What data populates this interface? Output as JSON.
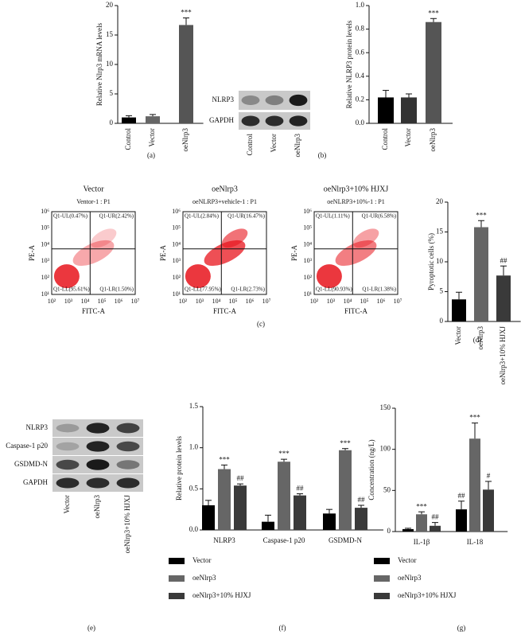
{
  "chart_data": [
    {
      "type": "bar",
      "panel": "(a)",
      "y_label": "Relative Nlrp3 mRNA levels",
      "categories": [
        "Control",
        "Vector",
        "oeNlrp3"
      ],
      "values": [
        1.0,
        1.2,
        16.7
      ],
      "errors": [
        0.3,
        0.3,
        1.2
      ],
      "annotations": [
        null,
        null,
        "***"
      ],
      "colors": [
        "#000000",
        "#666666",
        "#555555"
      ],
      "ylim": [
        0,
        20
      ],
      "yticks": [
        0,
        5,
        10,
        15,
        20
      ]
    },
    {
      "type": "bar",
      "panel": "(b)",
      "y_label": "Relative NLRP3 protein levels",
      "categories": [
        "Control",
        "Vector",
        "oeNlrp3"
      ],
      "values": [
        0.22,
        0.22,
        0.86
      ],
      "errors": [
        0.06,
        0.03,
        0.03
      ],
      "annotations": [
        null,
        null,
        "***"
      ],
      "colors": [
        "#000000",
        "#333333",
        "#555555"
      ],
      "ylim": [
        0,
        1
      ],
      "yticks": [
        {
          "value": 0,
          "label": "0.0"
        },
        0.2,
        0.4,
        0.6,
        0.8,
        {
          "value": 1,
          "label": "1.0"
        }
      ]
    },
    {
      "type": "bar",
      "panel": "(d)",
      "y_label": "Pyroptotic cells (%)",
      "categories": [
        "Vector",
        "oeNlrp3",
        "oeNlrp3+10% HJXJ"
      ],
      "values": [
        3.7,
        15.8,
        7.7
      ],
      "errors": [
        1.2,
        1.1,
        1.6
      ],
      "annotations": [
        null,
        "***",
        "##"
      ],
      "colors": [
        "#000000",
        "#666666",
        "#3a3a3a"
      ],
      "ylim": [
        0,
        20
      ],
      "yticks": [
        0,
        5,
        10,
        15,
        20
      ]
    },
    {
      "type": "grouped_bar",
      "panel": "(f)",
      "y_label": "Relative protein levels",
      "categories": [
        "NLRP3",
        "Caspase-1 p20",
        "GSDMD-N"
      ],
      "series": [
        {
          "name": "Vector",
          "color": "#000000",
          "values": [
            0.3,
            0.1,
            0.2
          ],
          "errors": [
            0.06,
            0.08,
            0.05
          ],
          "annotations": [
            null,
            null,
            null
          ]
        },
        {
          "name": "oeNlrp3",
          "color": "#666666",
          "values": [
            0.74,
            0.83,
            0.97
          ],
          "errors": [
            0.05,
            0.03,
            0.02
          ],
          "annotations": [
            "***",
            "***",
            "***"
          ]
        },
        {
          "name": "oeNlrp3+10% HJXJ",
          "color": "#3a3a3a",
          "values": [
            0.54,
            0.42,
            0.27
          ],
          "errors": [
            0.02,
            0.02,
            0.03
          ],
          "annotations": [
            "##",
            "##",
            "##"
          ]
        }
      ],
      "ylim": [
        0,
        1.5
      ],
      "yticks": [
        {
          "value": 0,
          "label": "0.0"
        },
        0.5,
        {
          "value": 1,
          "label": "1.0"
        },
        1.5
      ]
    },
    {
      "type": "grouped_bar",
      "panel": "(g)",
      "y_label": "Concentration (ng/L)",
      "categories": [
        "IL-1β",
        "IL-18"
      ],
      "series": [
        {
          "name": "Vector",
          "color": "#000000",
          "values": [
            3,
            27
          ],
          "errors": [
            1,
            10
          ],
          "annotations": [
            null,
            "##"
          ]
        },
        {
          "name": "oeNlrp3",
          "color": "#666666",
          "values": [
            21,
            113
          ],
          "errors": [
            3,
            19
          ],
          "annotations": [
            "***",
            "***"
          ]
        },
        {
          "name": "oeNlrp3+10% HJXJ",
          "color": "#3a3a3a",
          "values": [
            7,
            51
          ],
          "errors": [
            4,
            10
          ],
          "annotations": [
            "##",
            "#"
          ]
        }
      ],
      "ylim": [
        0,
        150
      ],
      "yticks": [
        0,
        50,
        100,
        150
      ]
    }
  ],
  "flow_cytometry": {
    "panel": "(c)",
    "x_label": "FITC-A",
    "y_label": "PE-A",
    "xticks": [
      "10²",
      "10³",
      "10⁴",
      "10⁵",
      "10⁶",
      "10⁷"
    ],
    "yticks": [
      "10¹",
      "10²",
      "10³",
      "10⁴",
      "10⁵",
      "10⁶"
    ],
    "plots": [
      {
        "title": "Vector",
        "subtitle": "Ventor-1 : P1",
        "quadrants": [
          "Q1-UL(0.47%)",
          "Q1-UR(2.42%)",
          "Q1-LL(95.61%)",
          "Q1-LR(1.50%)"
        ]
      },
      {
        "title": "oeNlrp3",
        "subtitle": "oeNLRP3+vehicle-1 : P1",
        "quadrants": [
          "Q1-UL(2.84%)",
          "Q1-UR(16.47%)",
          "Q1-LL(77.95%)",
          "Q1-LR(2.73%)"
        ]
      },
      {
        "title": "oeNlrp3+10% HJXJ",
        "subtitle": "oeNLRP3+10%-1 : P1",
        "quadrants": [
          "Q1-UL(1.11%)",
          "Q1-UR(6.58%)",
          "Q1-LL(90.93%)",
          "Q1-LR(1.38%)"
        ]
      }
    ]
  },
  "blot_b": {
    "rows": [
      "NLRP3",
      "GAPDH"
    ],
    "lanes": [
      "Control",
      "Vector",
      "oeNlrp3"
    ]
  },
  "blot_e": {
    "panel": "(e)",
    "rows": [
      "NLRP3",
      "Caspase-1 p20",
      "GSDMD-N",
      "GAPDH"
    ],
    "lanes": [
      "Vector",
      "oeNlrp3",
      "oeNlrp3+10% HJXJ"
    ]
  }
}
